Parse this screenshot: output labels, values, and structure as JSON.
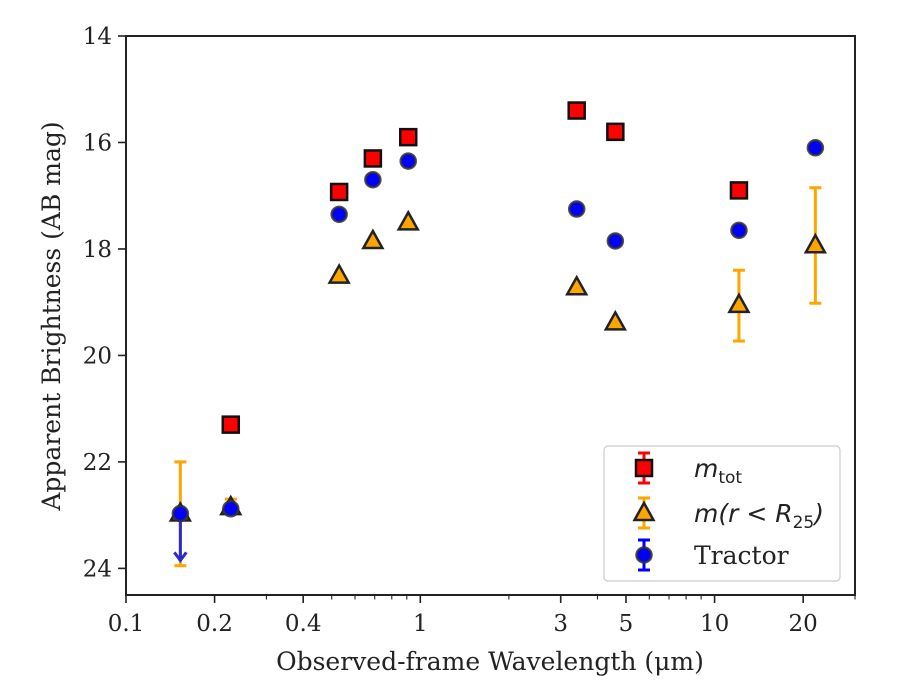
{
  "chart_data": {
    "type": "scatter",
    "title": "",
    "xlabel": "Observed-frame Wavelength (μm)",
    "ylabel": "Apparent Brightness (AB mag)",
    "x_scale": "log",
    "xlim": [
      0.1,
      30
    ],
    "ylim": [
      24.5,
      14
    ],
    "y_inverted": true,
    "x_ticks": [
      {
        "value": 0.1,
        "label": "0.1"
      },
      {
        "value": 0.2,
        "label": "0.2"
      },
      {
        "value": 0.4,
        "label": "0.4"
      },
      {
        "value": 1,
        "label": "1"
      },
      {
        "value": 3,
        "label": "3"
      },
      {
        "value": 5,
        "label": "5"
      },
      {
        "value": 10,
        "label": "10"
      },
      {
        "value": 20,
        "label": "20"
      }
    ],
    "y_ticks": [
      {
        "value": 14,
        "label": "14"
      },
      {
        "value": 16,
        "label": "16"
      },
      {
        "value": 18,
        "label": "18"
      },
      {
        "value": 20,
        "label": "20"
      },
      {
        "value": 22,
        "label": "22"
      },
      {
        "value": 24,
        "label": "24"
      }
    ],
    "grid": false,
    "legend_position": "lower-right",
    "series": [
      {
        "key": "mtot",
        "marker": "square",
        "color": "#ff0000",
        "edge": "#111111",
        "err_color": "#ff0000",
        "points": [
          {
            "x": 0.227,
            "y": 21.3
          },
          {
            "x": 0.53,
            "y": 16.93
          },
          {
            "x": 0.69,
            "y": 16.3
          },
          {
            "x": 0.91,
            "y": 15.9
          },
          {
            "x": 3.4,
            "y": 15.4
          },
          {
            "x": 4.6,
            "y": 15.8
          },
          {
            "x": 12.1,
            "y": 16.9
          }
        ]
      },
      {
        "key": "mR25",
        "marker": "triangle",
        "color": "#ffa500",
        "edge": "#222222",
        "err_color": "#ffa500",
        "points": [
          {
            "x": 0.153,
            "y": 22.97,
            "err_lo": 22.0,
            "err_hi": 23.95
          },
          {
            "x": 0.227,
            "y": 22.85,
            "err_lo": 22.7,
            "err_hi": 22.95
          },
          {
            "x": 0.53,
            "y": 18.5
          },
          {
            "x": 0.69,
            "y": 17.85
          },
          {
            "x": 0.91,
            "y": 17.5
          },
          {
            "x": 3.4,
            "y": 18.72
          },
          {
            "x": 4.6,
            "y": 19.38
          },
          {
            "x": 12.1,
            "y": 19.05,
            "err_lo": 18.4,
            "err_hi": 19.73
          },
          {
            "x": 22,
            "y": 17.93,
            "err_lo": 16.85,
            "err_hi": 19.02
          }
        ]
      },
      {
        "key": "tractor",
        "marker": "circle",
        "color": "#0000ff",
        "edge": "#333333",
        "err_color": "#0000ff",
        "points": [
          {
            "x": 0.153,
            "y": 22.97,
            "upper_limit_to": 23.85
          },
          {
            "x": 0.227,
            "y": 22.88
          },
          {
            "x": 0.53,
            "y": 17.35
          },
          {
            "x": 0.69,
            "y": 16.7
          },
          {
            "x": 0.91,
            "y": 16.35
          },
          {
            "x": 3.4,
            "y": 17.25
          },
          {
            "x": 4.6,
            "y": 17.85
          },
          {
            "x": 12.1,
            "y": 17.65
          },
          {
            "x": 22,
            "y": 16.1
          }
        ]
      }
    ],
    "legend": [
      {
        "series": "mtot",
        "label_main": "m",
        "label_sub": "tot",
        "label_rest": ""
      },
      {
        "series": "mR25",
        "label_main": "m(r < R",
        "label_sub": "25",
        "label_rest": ")"
      },
      {
        "series": "tractor",
        "label_main": "",
        "label_sub": "",
        "label_rest": "Tractor"
      }
    ]
  }
}
